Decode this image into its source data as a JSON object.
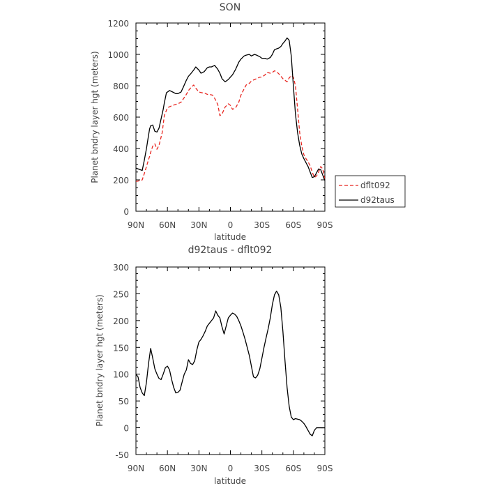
{
  "chart_data": [
    {
      "type": "line",
      "title": "SON",
      "xlabel": "latitude",
      "ylabel": "Planet bndry layer hgt (meters)",
      "xlim": [
        90,
        -90
      ],
      "ylim": [
        0,
        1200
      ],
      "x_ticks": [
        90,
        60,
        30,
        0,
        -30,
        -60,
        -90
      ],
      "x_tick_labels": [
        "90N",
        "60N",
        "30N",
        "0",
        "30S",
        "60S",
        "90S"
      ],
      "y_ticks": [
        0,
        200,
        400,
        600,
        800,
        1000,
        1200
      ],
      "y_tick_labels": [
        "0",
        "200",
        "400",
        "600",
        "800",
        "1000",
        "1200"
      ],
      "grid": false,
      "legend_position": "outside-right",
      "series": [
        {
          "name": "dflt092",
          "color": "#e8251f",
          "dash": "dashed",
          "x": [
            90,
            86,
            84,
            82,
            80,
            78,
            77,
            76,
            75,
            74,
            72,
            70,
            68,
            65,
            63,
            60,
            55,
            50,
            47,
            45,
            42,
            40,
            38,
            35,
            33,
            30,
            27,
            25,
            22,
            20,
            17,
            15,
            12,
            10,
            8,
            5,
            2,
            0,
            -2,
            -5,
            -8,
            -10,
            -13,
            -15,
            -18,
            -20,
            -23,
            -25,
            -28,
            -30,
            -33,
            -35,
            -38,
            -40,
            -42,
            -44,
            -47,
            -50,
            -52,
            -54,
            -56,
            -58,
            -60,
            -62,
            -64,
            -66,
            -68,
            -70,
            -72,
            -74,
            -76,
            -78,
            -80,
            -82,
            -84,
            -86,
            -88,
            -90
          ],
          "y": [
            190,
            195,
            200,
            240,
            285,
            330,
            350,
            375,
            395,
            415,
            430,
            395,
            420,
            500,
            610,
            660,
            675,
            685,
            695,
            715,
            745,
            770,
            785,
            805,
            785,
            760,
            755,
            755,
            745,
            745,
            740,
            720,
            680,
            610,
            620,
            665,
            685,
            675,
            650,
            660,
            695,
            740,
            780,
            805,
            815,
            830,
            840,
            845,
            855,
            855,
            870,
            885,
            880,
            885,
            895,
            890,
            870,
            845,
            835,
            825,
            850,
            865,
            855,
            800,
            650,
            500,
            415,
            360,
            335,
            315,
            290,
            250,
            215,
            225,
            250,
            285,
            270,
            200
          ]
        },
        {
          "name": "d92taus",
          "color": "#000000",
          "dash": "solid",
          "x": [
            90,
            86,
            84,
            82,
            80,
            78,
            77,
            76,
            74,
            72,
            70,
            68,
            66,
            64,
            63,
            61,
            58,
            55,
            52,
            50,
            47,
            45,
            42,
            40,
            38,
            35,
            33,
            30,
            28,
            25,
            22,
            20,
            18,
            15,
            12,
            10,
            8,
            5,
            2,
            0,
            -2,
            -5,
            -8,
            -10,
            -13,
            -15,
            -18,
            -20,
            -23,
            -25,
            -28,
            -30,
            -33,
            -35,
            -38,
            -40,
            -42,
            -44,
            -46,
            -48,
            -50,
            -52,
            -54,
            -56,
            -58,
            -60,
            -62,
            -64,
            -66,
            -68,
            -70,
            -72,
            -74,
            -76,
            -78,
            -80,
            -82,
            -84,
            -86,
            -88,
            -90
          ],
          "y": [
            275,
            265,
            260,
            325,
            400,
            485,
            525,
            545,
            550,
            510,
            505,
            530,
            590,
            650,
            690,
            755,
            770,
            760,
            750,
            750,
            760,
            790,
            835,
            860,
            875,
            900,
            920,
            900,
            880,
            890,
            915,
            920,
            920,
            930,
            905,
            880,
            845,
            825,
            840,
            855,
            870,
            905,
            950,
            970,
            990,
            995,
            1000,
            990,
            1000,
            995,
            985,
            975,
            975,
            970,
            980,
            1000,
            1030,
            1035,
            1040,
            1050,
            1070,
            1085,
            1105,
            1090,
            990,
            800,
            620,
            500,
            420,
            365,
            335,
            310,
            285,
            250,
            215,
            220,
            245,
            270,
            265,
            230,
            195
          ]
        }
      ]
    },
    {
      "type": "line",
      "title": "d92taus - dflt092",
      "xlabel": "latitude",
      "ylabel": "Planet bndry layer hgt (meters)",
      "xlim": [
        90,
        -90
      ],
      "ylim": [
        -50,
        300
      ],
      "x_ticks": [
        90,
        60,
        30,
        0,
        -30,
        -60,
        -90
      ],
      "x_tick_labels": [
        "90N",
        "60N",
        "30N",
        "0",
        "30S",
        "60S",
        "90S"
      ],
      "y_ticks": [
        -50,
        0,
        50,
        100,
        150,
        200,
        250,
        300
      ],
      "y_tick_labels": [
        "-50",
        "0",
        "50",
        "100",
        "150",
        "200",
        "250",
        "300"
      ],
      "grid": false,
      "series": [
        {
          "color": "#000000",
          "dash": "solid",
          "x": [
            90,
            88,
            86,
            84,
            82,
            80,
            78,
            76,
            74,
            72,
            70,
            68,
            66,
            64,
            62,
            60,
            58,
            56,
            54,
            52,
            50,
            48,
            46,
            44,
            42,
            40,
            38,
            36,
            34,
            32,
            30,
            28,
            26,
            24,
            22,
            20,
            18,
            16,
            14,
            12,
            10,
            8,
            6,
            4,
            2,
            0,
            -2,
            -4,
            -6,
            -8,
            -10,
            -12,
            -14,
            -16,
            -18,
            -20,
            -22,
            -24,
            -26,
            -28,
            -30,
            -32,
            -34,
            -36,
            -38,
            -40,
            -42,
            -44,
            -46,
            -48,
            -50,
            -52,
            -54,
            -56,
            -58,
            -60,
            -62,
            -64,
            -66,
            -68,
            -70,
            -72,
            -74,
            -76,
            -78,
            -80,
            -82,
            -84,
            -86,
            -88,
            -90
          ],
          "y": [
            100,
            95,
            75,
            65,
            60,
            85,
            120,
            148,
            130,
            110,
            100,
            92,
            90,
            100,
            112,
            115,
            108,
            90,
            75,
            65,
            66,
            70,
            85,
            100,
            108,
            127,
            120,
            118,
            125,
            145,
            160,
            165,
            172,
            180,
            190,
            195,
            200,
            205,
            218,
            210,
            205,
            188,
            175,
            190,
            205,
            210,
            214,
            212,
            208,
            200,
            190,
            178,
            165,
            150,
            135,
            115,
            95,
            93,
            98,
            110,
            130,
            150,
            168,
            185,
            205,
            230,
            248,
            255,
            248,
            225,
            180,
            125,
            75,
            40,
            20,
            15,
            17,
            16,
            15,
            12,
            8,
            2,
            -5,
            -12,
            -15,
            -5,
            0,
            0,
            0,
            0,
            0
          ]
        }
      ]
    }
  ],
  "legend": {
    "items": [
      {
        "name": "dflt092",
        "color": "#e8251f",
        "dash": "dashed"
      },
      {
        "name": "d92taus",
        "color": "#000000",
        "dash": "solid"
      }
    ]
  }
}
